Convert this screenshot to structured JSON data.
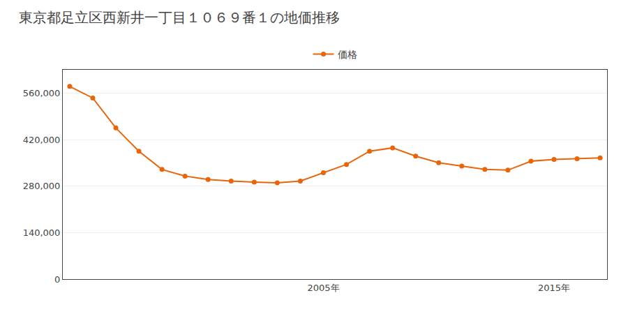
{
  "chart_data": {
    "type": "line",
    "title": "東京都足立区西新井一丁目１０６９番１の地価推移",
    "x": [
      1994,
      1995,
      1996,
      1997,
      1998,
      1999,
      2000,
      2001,
      2002,
      2003,
      2004,
      2005,
      2006,
      2007,
      2008,
      2009,
      2010,
      2011,
      2012,
      2013,
      2014,
      2015,
      2016,
      2017
    ],
    "series": [
      {
        "name": "価格",
        "color": "#e8650a",
        "marker": "circle",
        "values": [
          580000,
          545000,
          455000,
          385000,
          330000,
          310000,
          300000,
          295000,
          292000,
          290000,
          295000,
          320000,
          345000,
          385000,
          395000,
          370000,
          350000,
          340000,
          330000,
          328000,
          355000,
          360000,
          362000,
          365000
        ]
      }
    ],
    "xlim": [
      1993.7,
      2017.3
    ],
    "xticks": [
      {
        "value": 2005,
        "label": "2005年"
      },
      {
        "value": 2015,
        "label": "2015年"
      }
    ],
    "ylim": [
      0,
      630000
    ],
    "yticks": [
      0,
      {
        "value": 140000,
        "label": "140,000"
      },
      {
        "value": 280000,
        "label": "280,000"
      },
      {
        "value": 420000,
        "label": "420,000"
      },
      {
        "value": 560000,
        "label": "560,000"
      }
    ],
    "grid": "y",
    "legend": "top"
  }
}
